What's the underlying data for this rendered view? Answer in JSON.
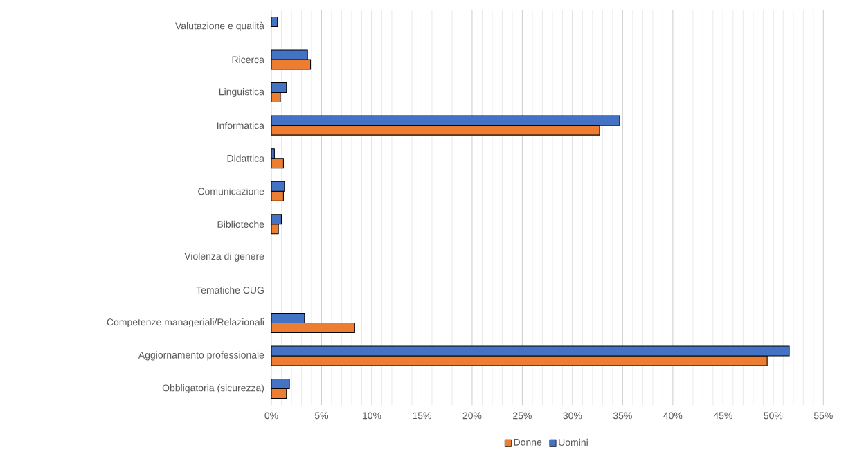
{
  "chart_data": {
    "type": "bar",
    "orientation": "horizontal",
    "categories": [
      "Valutazione e qualità",
      "Ricerca",
      "Linguistica",
      "Informatica",
      "Didattica",
      "Comunicazione",
      "Biblioteche",
      "Violenza di genere",
      "Tematiche CUG",
      "Competenze manageriali/Relazionali",
      "Aggiornamento professionale",
      "Obbligatoria (sicurezza)"
    ],
    "series": [
      {
        "name": "Donne",
        "color": "#ed7d31",
        "values": [
          null,
          3.9,
          0.9,
          32.7,
          1.2,
          1.2,
          0.7,
          null,
          null,
          8.3,
          49.4,
          1.5
        ]
      },
      {
        "name": "Uomini",
        "color": "#4472c4",
        "values": [
          0.6,
          3.6,
          1.5,
          34.7,
          0.3,
          1.3,
          1.0,
          null,
          null,
          3.3,
          51.6,
          1.8
        ]
      }
    ],
    "xlim": [
      0,
      55
    ],
    "xticks": [
      {
        "value": 0,
        "label": "0%"
      },
      {
        "value": 5,
        "label": "5%"
      },
      {
        "value": 10,
        "label": "10%"
      },
      {
        "value": 15,
        "label": "15%"
      },
      {
        "value": 20,
        "label": "20%"
      },
      {
        "value": 25,
        "label": "25%"
      },
      {
        "value": 30,
        "label": "30%"
      },
      {
        "value": 35,
        "label": "35%"
      },
      {
        "value": 40,
        "label": "40%"
      },
      {
        "value": 45,
        "label": "45%"
      },
      {
        "value": 50,
        "label": "50%"
      },
      {
        "value": 55,
        "label": "55%"
      }
    ],
    "grid": "x",
    "legend": "bottom"
  }
}
